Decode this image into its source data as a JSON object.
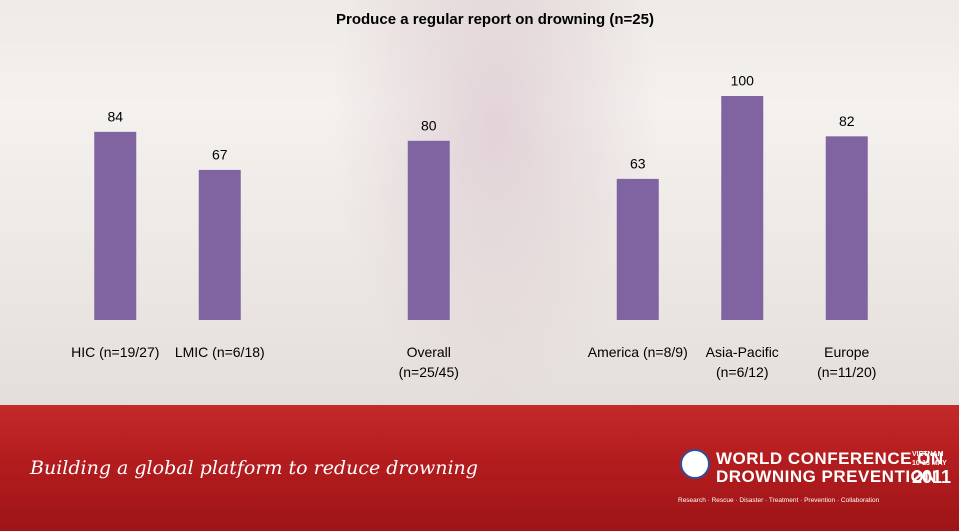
{
  "chart_data": {
    "type": "bar",
    "title": "Produce a regular report on drowning (n=25)",
    "categories": [
      "HIC (n=19/27)",
      "LMIC (n=6/18)",
      null,
      "Overall (n=25/45)",
      null,
      "America (n=8/9)",
      "Asia-Pacific (n=6/12)",
      "Europe (n=11/20)"
    ],
    "values": [
      84,
      67,
      null,
      80,
      null,
      63,
      100,
      82
    ],
    "color": "#8064a2",
    "ylim": [
      0,
      100
    ]
  },
  "footer": {
    "slogan": "Building a global platform to reduce drowning",
    "logo_line1": "WORLD CONFERENCE ON",
    "logo_line2": "DROWNING PREVENTION",
    "logo_place": "VIETNAM",
    "logo_dates": "10-13 MAY",
    "logo_year": "2011",
    "tagline": "Research · Rescue · Disaster · Treatment · Prevention · Collaboration"
  }
}
